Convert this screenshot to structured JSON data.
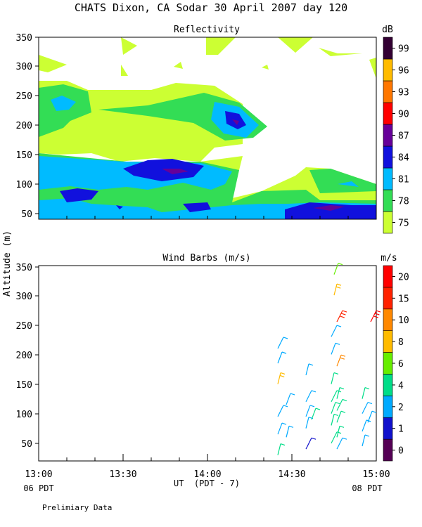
{
  "page": {
    "title": "CHATS Dixon, CA  Sodar  30 April 2007  day 120",
    "footer_note": "Prelimiary Data"
  },
  "chart_data": [
    {
      "type": "heatmap",
      "title": "Reflectivity",
      "ylabel": "Altitude (m)",
      "xlim": [
        "13:00",
        "15:00"
      ],
      "ylim": [
        30,
        350
      ],
      "yticks": [
        "50",
        "100",
        "150",
        "200",
        "250",
        "300",
        "350"
      ],
      "colorbar": {
        "label": "dB",
        "levels": [
          {
            "label": "75",
            "color": "#ccff33"
          },
          {
            "label": "78",
            "color": "#33dd55"
          },
          {
            "label": "81",
            "color": "#00bbff"
          },
          {
            "label": "84",
            "color": "#1111dd"
          },
          {
            "label": "87",
            "color": "#660099"
          },
          {
            "label": "90",
            "color": "#ff0000"
          },
          {
            "label": "93",
            "color": "#ff7700"
          },
          {
            "label": "96",
            "color": "#ffbb00"
          },
          {
            "label": "99",
            "color": "#330033"
          }
        ]
      }
    },
    {
      "type": "scatter",
      "title": "Wind Barbs (m/s)",
      "xlabel": "UT  (PDT - 7)",
      "xlim": [
        "13:00",
        "15:00"
      ],
      "ylim": [
        20,
        350
      ],
      "xticks": [
        "13:00",
        "13:30",
        "14:00",
        "14:30",
        "15:00"
      ],
      "yticks": [
        "50",
        "100",
        "150",
        "200",
        "250",
        "300",
        "350"
      ],
      "x_sublabels": {
        "left": "06 PDT",
        "right": "08 PDT"
      },
      "colorbar": {
        "label": "m/s",
        "levels": [
          {
            "label": "0",
            "color": "#550055"
          },
          {
            "label": "1",
            "color": "#1111cc"
          },
          {
            "label": "2",
            "color": "#00aaff"
          },
          {
            "label": "4",
            "color": "#00dd88"
          },
          {
            "label": "6",
            "color": "#66ee00"
          },
          {
            "label": "8",
            "color": "#ffbb00"
          },
          {
            "label": "10",
            "color": "#ff8800"
          },
          {
            "label": "15",
            "color": "#ff2200"
          },
          {
            "label": "20",
            "color": "#ff0000"
          }
        ]
      },
      "barbs": [
        {
          "t": "14:25",
          "alt": 30,
          "speed": 5
        },
        {
          "t": "14:25",
          "alt": 65,
          "speed": 3
        },
        {
          "t": "14:25",
          "alt": 95,
          "speed": 3
        },
        {
          "t": "14:25",
          "alt": 150,
          "speed": 9
        },
        {
          "t": "14:25",
          "alt": 185,
          "speed": 3
        },
        {
          "t": "14:25",
          "alt": 210,
          "speed": 3
        },
        {
          "t": "14:28",
          "alt": 60,
          "speed": 3
        },
        {
          "t": "14:28",
          "alt": 115,
          "speed": 3
        },
        {
          "t": "14:35",
          "alt": 40,
          "speed": 1
        },
        {
          "t": "14:35",
          "alt": 75,
          "speed": 3
        },
        {
          "t": "14:35",
          "alt": 95,
          "speed": 3
        },
        {
          "t": "14:35",
          "alt": 120,
          "speed": 3
        },
        {
          "t": "14:35",
          "alt": 165,
          "speed": 3
        },
        {
          "t": "14:37",
          "alt": 90,
          "speed": 4
        },
        {
          "t": "14:44",
          "alt": 50,
          "speed": 4
        },
        {
          "t": "14:44",
          "alt": 80,
          "speed": 4
        },
        {
          "t": "14:44",
          "alt": 100,
          "speed": 4
        },
        {
          "t": "14:44",
          "alt": 120,
          "speed": 4
        },
        {
          "t": "14:44",
          "alt": 150,
          "speed": 5
        },
        {
          "t": "14:44",
          "alt": 200,
          "speed": 3
        },
        {
          "t": "14:44",
          "alt": 230,
          "speed": 3
        },
        {
          "t": "14:45",
          "alt": 300,
          "speed": 9
        },
        {
          "t": "14:45",
          "alt": 335,
          "speed": 7
        },
        {
          "t": "14:46",
          "alt": 40,
          "speed": 3
        },
        {
          "t": "14:46",
          "alt": 60,
          "speed": 4
        },
        {
          "t": "14:46",
          "alt": 85,
          "speed": 4
        },
        {
          "t": "14:46",
          "alt": 105,
          "speed": 4
        },
        {
          "t": "14:46",
          "alt": 125,
          "speed": 4
        },
        {
          "t": "14:46",
          "alt": 180,
          "speed": 12
        },
        {
          "t": "14:46",
          "alt": 255,
          "speed": 17
        },
        {
          "t": "14:55",
          "alt": 45,
          "speed": 3
        },
        {
          "t": "14:55",
          "alt": 70,
          "speed": 3
        },
        {
          "t": "14:55",
          "alt": 100,
          "speed": 3
        },
        {
          "t": "14:55",
          "alt": 125,
          "speed": 4
        },
        {
          "t": "14:57",
          "alt": 85,
          "speed": 3
        },
        {
          "t": "14:58",
          "alt": 255,
          "speed": 20
        }
      ]
    }
  ]
}
